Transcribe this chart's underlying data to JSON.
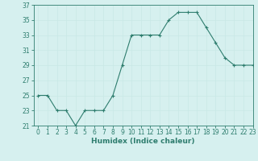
{
  "x": [
    0,
    1,
    2,
    3,
    4,
    5,
    6,
    7,
    8,
    9,
    10,
    11,
    12,
    13,
    14,
    15,
    16,
    17,
    18,
    19,
    20,
    21,
    22,
    23
  ],
  "y": [
    25,
    25,
    23,
    23,
    21,
    23,
    23,
    23,
    25,
    29,
    33,
    33,
    33,
    33,
    35,
    36,
    36,
    36,
    34,
    32,
    30,
    29,
    29,
    29
  ],
  "line_color": "#2e7d6e",
  "marker": "+",
  "marker_size": 3,
  "bg_color": "#d6f0ef",
  "grid_color": "#c8e8e6",
  "xlabel": "Humidex (Indice chaleur)",
  "ylim": [
    21,
    37
  ],
  "xlim": [
    -0.5,
    23
  ],
  "yticks": [
    21,
    23,
    25,
    27,
    29,
    31,
    33,
    35,
    37
  ],
  "xticks": [
    0,
    1,
    2,
    3,
    4,
    5,
    6,
    7,
    8,
    9,
    10,
    11,
    12,
    13,
    14,
    15,
    16,
    17,
    18,
    19,
    20,
    21,
    22,
    23
  ],
  "label_fontsize": 6.5,
  "tick_fontsize": 5.5
}
